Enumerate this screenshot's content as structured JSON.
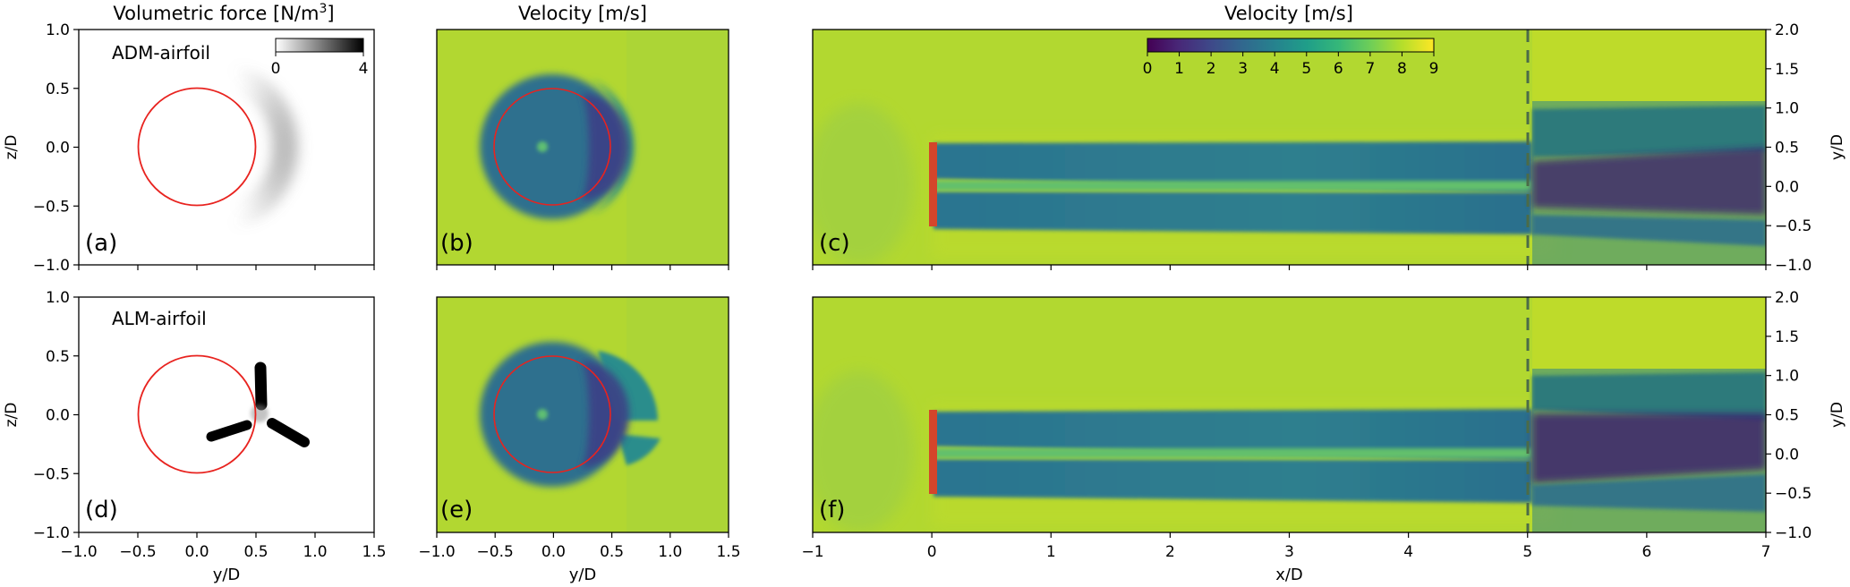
{
  "column_titles": {
    "force": "Volumetric force [N/m",
    "force_sup": "3",
    "force_close": "]",
    "velocity_mid": "Velocity [m/s]",
    "velocity_right": "Velocity [m/s]"
  },
  "force_colorbar": {
    "min_label": "0",
    "max_label": "4",
    "range": [
      0,
      4
    ],
    "colors": [
      "#ffffff",
      "#000000"
    ]
  },
  "velocity_colorbar": {
    "labels": [
      "0",
      "1",
      "2",
      "3",
      "4",
      "5",
      "6",
      "7",
      "8",
      "9"
    ],
    "range": [
      0,
      9
    ],
    "colormap": "viridis",
    "stops": [
      "#440154",
      "#482878",
      "#3e4989",
      "#31688e",
      "#26828e",
      "#1f9e89",
      "#35b779",
      "#6ece58",
      "#b5de2b",
      "#fde725"
    ]
  },
  "chart_data": [
    {
      "type": "heatmap",
      "panel": "(a)",
      "annotation": "ADM-airfoil",
      "quantity": "volumetric force",
      "xlabel": "",
      "ylabel": "z/D",
      "xlim": [
        -1.0,
        1.5
      ],
      "ylim": [
        -1.0,
        1.0
      ],
      "xticks": [
        "−1.0",
        "−0.5",
        "0.0",
        "0.5",
        "1.0",
        "1.5"
      ],
      "yticks": [
        "−1.0",
        "−0.5",
        "0.0",
        "0.5",
        "1.0"
      ],
      "rotor_circle": {
        "center": [
          0,
          0
        ],
        "radius": 0.5,
        "color": "#e8231f"
      },
      "force_region": {
        "shape": "crescent",
        "center": [
          0.65,
          0
        ],
        "radius": 0.45,
        "peak_value": 2.0
      }
    },
    {
      "type": "heatmap",
      "panel": "(b)",
      "quantity": "velocity",
      "xlim": [
        -1.0,
        1.5
      ],
      "ylim": [
        -1.0,
        1.0
      ],
      "background_value": 8.0,
      "rotor_circle": {
        "center": [
          0,
          0
        ],
        "radius": 0.5,
        "color": "#e8231f"
      },
      "wake": {
        "outer_radius": 0.62,
        "value": 3.6,
        "deficit_region_value": 2.4
      }
    },
    {
      "type": "heatmap",
      "panel": "(c)",
      "quantity": "velocity",
      "xlabel": "",
      "ylabel": "y/D",
      "xlim": [
        -1,
        7
      ],
      "ylim": [
        -1.0,
        2.0
      ],
      "yticks": [
        "−1.0",
        "−0.5",
        "0.0",
        "0.5",
        "1.0",
        "1.5",
        "2.0"
      ],
      "background_value": 8.0,
      "rotor_line_x": 0,
      "rotor_span": [
        -0.5,
        0.5
      ],
      "dashed_line_x": 5,
      "wake_bands": [
        [
          -0.55,
          -0.1
        ],
        [
          0.1,
          0.55
        ]
      ],
      "wake_value": 3.8,
      "hub_jet_value": 6.5,
      "downstream_region_value": 1.5
    },
    {
      "type": "heatmap",
      "panel": "(d)",
      "annotation": "ALM-airfoil",
      "quantity": "volumetric force",
      "xlabel": "y/D",
      "ylabel": "z/D",
      "xlim": [
        -1.0,
        1.5
      ],
      "ylim": [
        -1.0,
        1.0
      ],
      "xticks": [
        "−1.0",
        "−0.5",
        "0.0",
        "0.5",
        "1.0",
        "1.5"
      ],
      "yticks": [
        "−1.0",
        "−0.5",
        "0.0",
        "0.5",
        "1.0"
      ],
      "rotor_circle": {
        "center": [
          0,
          0
        ],
        "radius": 0.5,
        "color": "#e8231f"
      },
      "blades": {
        "hub": [
          0.52,
          -0.08
        ],
        "tips": [
          [
            0.52,
            0.52
          ],
          [
            0.05,
            -0.2
          ],
          [
            0.95,
            -0.26
          ]
        ],
        "value": 4.0
      }
    },
    {
      "type": "heatmap",
      "panel": "(e)",
      "quantity": "velocity",
      "xlabel": "y/D",
      "xlim": [
        -1.0,
        1.5
      ],
      "ylim": [
        -1.0,
        1.0
      ],
      "xticks": [
        "−1.0",
        "−0.5",
        "0.0",
        "0.5",
        "1.0",
        "1.5"
      ],
      "background_value": 8.0,
      "rotor_circle": {
        "center": [
          0,
          0
        ],
        "radius": 0.5,
        "color": "#e8231f"
      },
      "wake": {
        "outer_radius": 0.62,
        "value": 3.6,
        "deficit_region_value": 2.4
      }
    },
    {
      "type": "heatmap",
      "panel": "(f)",
      "quantity": "velocity",
      "xlabel": "x/D",
      "ylabel": "y/D",
      "xlim": [
        -1,
        7
      ],
      "ylim": [
        -1.0,
        2.0
      ],
      "xticks": [
        "−1",
        "0",
        "1",
        "2",
        "3",
        "4",
        "5",
        "6",
        "7"
      ],
      "yticks": [
        "−1.0",
        "−0.5",
        "0.0",
        "0.5",
        "1.0",
        "1.5",
        "2.0"
      ],
      "background_value": 8.0,
      "rotor_line_x": 0,
      "rotor_span": [
        -0.5,
        0.5
      ],
      "dashed_line_x": 5,
      "wake_bands": [
        [
          -0.55,
          -0.1
        ],
        [
          0.1,
          0.55
        ]
      ],
      "wake_value": 3.8,
      "hub_jet_value": 6.5,
      "downstream_region_value": 1.2
    }
  ]
}
